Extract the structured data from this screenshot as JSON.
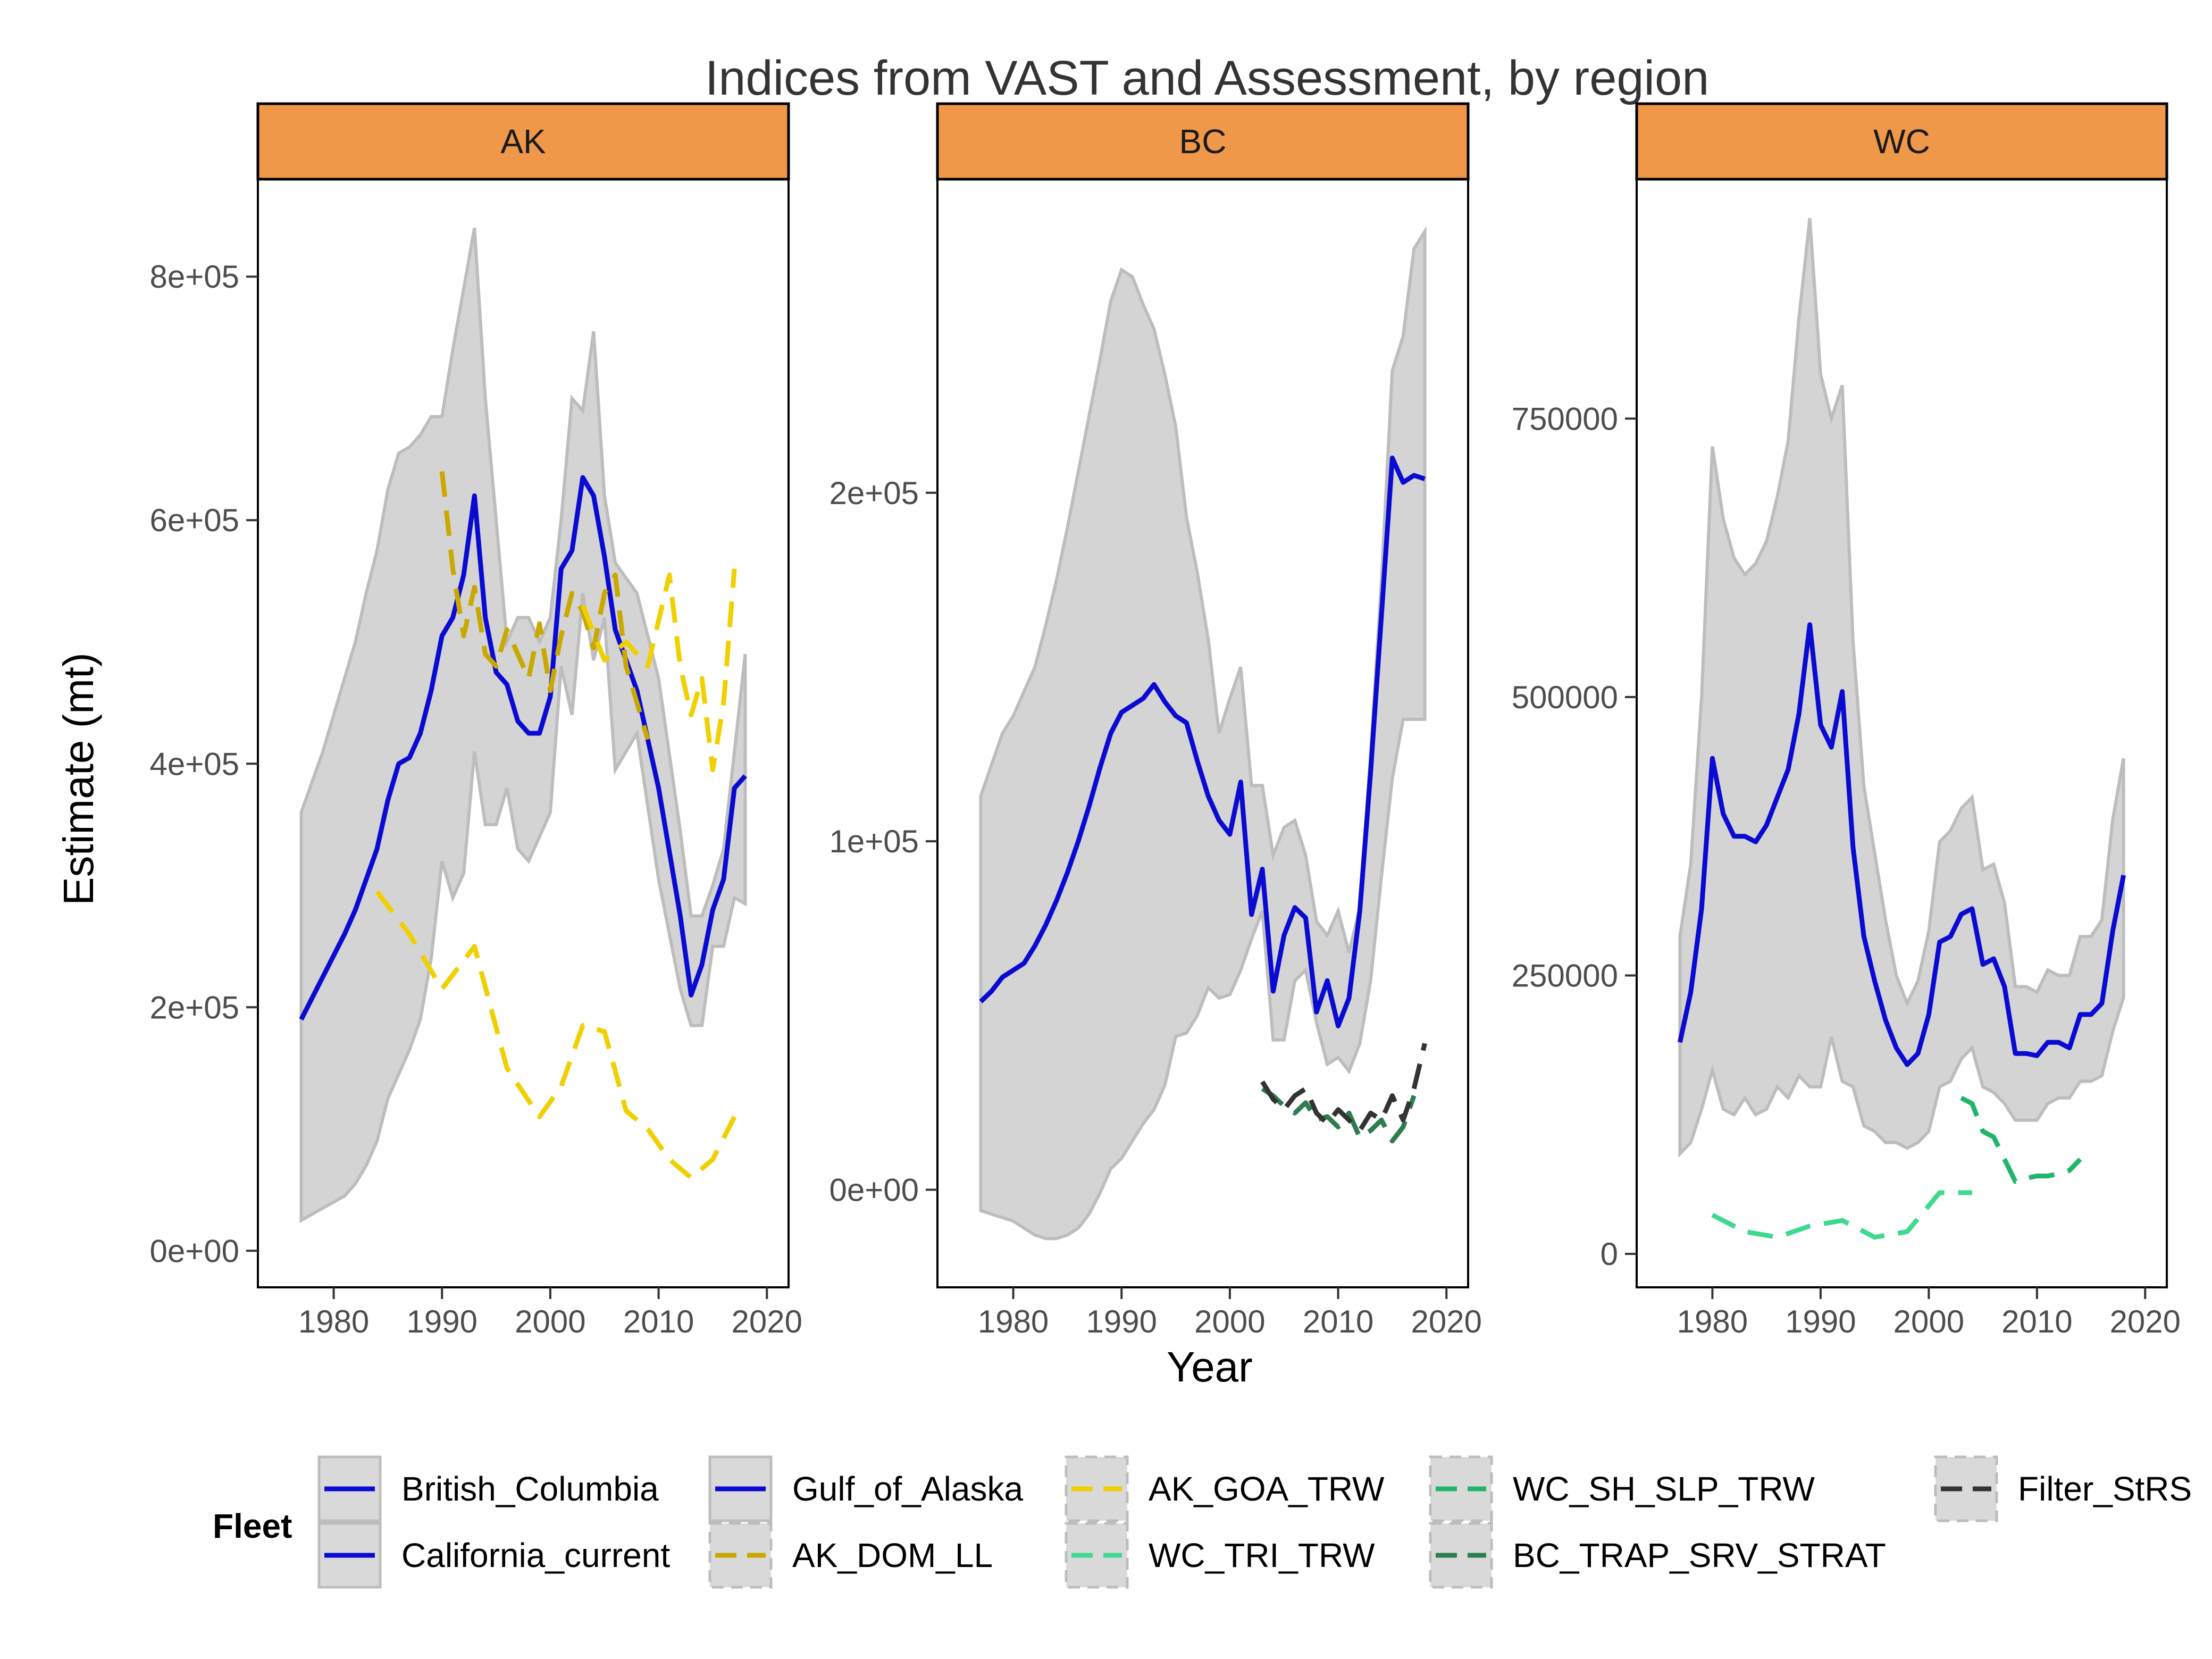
{
  "chart_data": {
    "type": "line",
    "title": "Indices from VAST and Assessment, by region",
    "xlabel": "Year",
    "ylabel": "Estimate (mt)",
    "grid": false,
    "legend_position": "bottom",
    "legend": {
      "title": "Fleet",
      "items": [
        {
          "label": "British_Columbia",
          "color": "#0a0ad2",
          "dash": "solid",
          "ribbon": true
        },
        {
          "label": "California_current",
          "color": "#0a0ad2",
          "dash": "solid",
          "ribbon": true
        },
        {
          "label": "Gulf_of_Alaska",
          "color": "#0a0ad2",
          "dash": "solid",
          "ribbon": true
        },
        {
          "label": "AK_DOM_LL",
          "color": "#c9a800",
          "dash": "dashed",
          "ribbon": false
        },
        {
          "label": "AK_GOA_TRW",
          "color": "#f0d000",
          "dash": "dashed",
          "ribbon": false
        },
        {
          "label": "WC_TRI_TRW",
          "color": "#3fd88f",
          "dash": "dashed",
          "ribbon": false
        },
        {
          "label": "WC_SH_SLP_TRW",
          "color": "#22b56a",
          "dash": "dashed",
          "ribbon": false
        },
        {
          "label": "BC_TRAP_SRV_STRAT",
          "color": "#2e7d4f",
          "dash": "dashed",
          "ribbon": false
        },
        {
          "label": "Filter_StRS",
          "color": "#333333",
          "dash": "dashed",
          "ribbon": false
        }
      ]
    },
    "colors": {
      "strip": "#f0984a",
      "ribbon": "#d4d4d4",
      "ribbon_edge": "#bdbdbd"
    },
    "panels": [
      {
        "label": "AK",
        "xlim": [
          1973,
          2022
        ],
        "xticks": [
          1980,
          1990,
          2000,
          2010,
          2020
        ],
        "ylim": [
          -30000,
          880000
        ],
        "yticks": [
          0,
          200000,
          400000,
          600000,
          800000
        ],
        "ytick_labels": [
          "0e+00",
          "2e+05",
          "4e+05",
          "6e+05",
          "8e+05"
        ],
        "series": [
          {
            "name": "Gulf_of_Alaska",
            "color": "#0a0ad2",
            "dash": "solid",
            "width": 9,
            "x": [
              1977,
              1979,
              1981,
              1982,
              1983,
              1984,
              1985,
              1986,
              1987,
              1988,
              1989,
              1990,
              1991,
              1992,
              1993,
              1994,
              1995,
              1996,
              1997,
              1998,
              1999,
              2000,
              2001,
              2002,
              2003,
              2004,
              2005,
              2006,
              2008,
              2010,
              2012,
              2013,
              2014,
              2015,
              2016,
              2017,
              2018
            ],
            "y": [
              190000,
              225000,
              260000,
              280000,
              305000,
              330000,
              370000,
              400000,
              405000,
              425000,
              460000,
              505000,
              520000,
              555000,
              620000,
              520000,
              475000,
              465000,
              435000,
              425000,
              425000,
              455000,
              560000,
              575000,
              635000,
              620000,
              570000,
              510000,
              460000,
              380000,
              275000,
              210000,
              235000,
              280000,
              305000,
              380000,
              390000
            ],
            "lower": [
              25000,
              35000,
              45000,
              55000,
              70000,
              90000,
              125000,
              145000,
              165000,
              190000,
              240000,
              320000,
              290000,
              310000,
              410000,
              350000,
              350000,
              380000,
              330000,
              320000,
              340000,
              360000,
              480000,
              440000,
              540000,
              485000,
              520000,
              395000,
              425000,
              305000,
              215000,
              185000,
              185000,
              250000,
              250000,
              290000,
              285000
            ],
            "upper": [
              360000,
              410000,
              470000,
              500000,
              540000,
              575000,
              625000,
              655000,
              660000,
              670000,
              685000,
              685000,
              740000,
              790000,
              840000,
              700000,
              600000,
              500000,
              520000,
              520000,
              500000,
              520000,
              600000,
              700000,
              690000,
              755000,
              620000,
              565000,
              540000,
              470000,
              345000,
              275000,
              275000,
              300000,
              330000,
              410000,
              490000
            ]
          },
          {
            "name": "AK_DOM_LL",
            "color": "#c9a800",
            "dash": "dashed",
            "width": 9,
            "x": [
              1990,
              1991,
              1992,
              1993,
              1994,
              1995,
              1996,
              1997,
              1998,
              1999,
              2000,
              2001,
              2002,
              2003,
              2004,
              2005,
              2006,
              2007,
              2008,
              2009
            ],
            "y": [
              640000,
              560000,
              505000,
              545000,
              490000,
              480000,
              510000,
              490000,
              470000,
              515000,
              460000,
              505000,
              540000,
              525000,
              495000,
              540000,
              555000,
              480000,
              450000,
              420000
            ]
          },
          {
            "name": "AK_GOA_TRW",
            "color": "#f0d000",
            "dash": "dashed",
            "width": 9,
            "x": [
              1984,
              1987,
              1990,
              1993,
              1996,
              1999,
              2001,
              2003,
              2005,
              2007,
              2009,
              2011,
              2013,
              2015,
              2017
            ],
            "y": [
              295000,
              260000,
              215000,
              250000,
              150000,
              110000,
              135000,
              185000,
              180000,
              115000,
              100000,
              75000,
              60000,
              75000,
              110000
            ]
          },
          {
            "name": "AK_GOA_TRW",
            "color": "#f0d000",
            "dash": "dashed",
            "width": 9,
            "x": [
              2003,
              2005,
              2007,
              2009,
              2011,
              2012,
              2013,
              2014,
              2015,
              2016,
              2017
            ],
            "y": [
              530000,
              485000,
              500000,
              480000,
              555000,
              480000,
              440000,
              470000,
              395000,
              450000,
              560000
            ]
          }
        ]
      },
      {
        "label": "BC",
        "xlim": [
          1973,
          2022
        ],
        "xticks": [
          1980,
          1990,
          2000,
          2010,
          2020
        ],
        "ylim": [
          -28000,
          290000
        ],
        "yticks": [
          0,
          100000,
          200000
        ],
        "ytick_labels": [
          "0e+00",
          "1e+05",
          "2e+05"
        ],
        "series": [
          {
            "name": "British_Columbia",
            "color": "#0a0ad2",
            "dash": "solid",
            "width": 9,
            "x": [
              1977,
              1978,
              1979,
              1980,
              1981,
              1982,
              1983,
              1984,
              1985,
              1986,
              1987,
              1988,
              1989,
              1990,
              1991,
              1992,
              1993,
              1994,
              1995,
              1996,
              1997,
              1998,
              1999,
              2000,
              2001,
              2002,
              2003,
              2004,
              2005,
              2006,
              2007,
              2008,
              2009,
              2010,
              2011,
              2012,
              2013,
              2014,
              2015,
              2016,
              2017,
              2018
            ],
            "y": [
              54000,
              57000,
              61000,
              63000,
              65000,
              70000,
              76000,
              83000,
              91000,
              100000,
              110000,
              121000,
              131000,
              137000,
              139000,
              141000,
              145000,
              140000,
              136000,
              134000,
              123000,
              113000,
              106000,
              102000,
              117000,
              79000,
              92000,
              57000,
              73000,
              81000,
              78000,
              51000,
              60000,
              47000,
              55000,
              80000,
              120000,
              165000,
              210000,
              203000,
              205000,
              204000
            ],
            "lower": [
              -6000,
              -7000,
              -8000,
              -9000,
              -11000,
              -13000,
              -14000,
              -14000,
              -13000,
              -11000,
              -7000,
              -1000,
              6000,
              9000,
              14000,
              19000,
              23000,
              30000,
              44000,
              45000,
              50000,
              58000,
              55000,
              56000,
              63000,
              72000,
              80000,
              43000,
              43000,
              60000,
              63000,
              48000,
              36000,
              38000,
              34000,
              42000,
              60000,
              90000,
              118000,
              135000,
              135000,
              135000
            ],
            "upper": [
              113000,
              122000,
              131000,
              136000,
              143000,
              150000,
              162000,
              175000,
              190000,
              206000,
              222000,
              238000,
              255000,
              264000,
              262000,
              254000,
              247000,
              234000,
              219000,
              193000,
              177000,
              158000,
              131000,
              141000,
              150000,
              116000,
              116000,
              96000,
              104000,
              106000,
              96000,
              77000,
              73000,
              80000,
              68000,
              81000,
              125000,
              175000,
              235000,
              245000,
              270000,
              275000
            ]
          },
          {
            "name": "BC_TRAP_SRV_STRAT",
            "color": "#2e7d4f",
            "dash": "dashed",
            "width": 9,
            "x": [
              2003,
              2004,
              2005,
              2006,
              2007,
              2008,
              2009,
              2010,
              2011,
              2012,
              2013,
              2014,
              2015,
              2016,
              2017
            ],
            "y": [
              29000,
              27000,
              24000,
              22000,
              25000,
              20000,
              21000,
              18000,
              22000,
              15000,
              17000,
              20000,
              14000,
              18000,
              27000
            ]
          },
          {
            "name": "Filter_StRS",
            "color": "#333333",
            "dash": "dashed",
            "width": 9,
            "x": [
              2003,
              2004,
              2005,
              2006,
              2007,
              2008,
              2009,
              2010,
              2011,
              2012,
              2013,
              2014,
              2015,
              2016,
              2017,
              2018
            ],
            "y": [
              31000,
              26000,
              23000,
              27000,
              29000,
              22000,
              19000,
              23000,
              20000,
              17000,
              22000,
              20000,
              27000,
              20000,
              29000,
              42000
            ]
          }
        ]
      },
      {
        "label": "WC",
        "xlim": [
          1973,
          2022
        ],
        "xticks": [
          1980,
          1990,
          2000,
          2010,
          2020
        ],
        "ylim": [
          -30000,
          965000
        ],
        "yticks": [
          0,
          250000,
          500000,
          750000
        ],
        "ytick_labels": [
          "0",
          "250000",
          "500000",
          "750000"
        ],
        "series": [
          {
            "name": "California_current",
            "color": "#0a0ad2",
            "dash": "solid",
            "width": 9,
            "x": [
              1977,
              1978,
              1979,
              1980,
              1981,
              1982,
              1983,
              1984,
              1985,
              1986,
              1987,
              1988,
              1989,
              1990,
              1991,
              1992,
              1993,
              1994,
              1995,
              1996,
              1997,
              1998,
              1999,
              2000,
              2001,
              2002,
              2003,
              2004,
              2005,
              2006,
              2007,
              2008,
              2009,
              2010,
              2011,
              2012,
              2013,
              2014,
              2015,
              2016,
              2017,
              2018
            ],
            "y": [
              190000,
              235000,
              310000,
              445000,
              395000,
              375000,
              375000,
              370000,
              385000,
              410000,
              435000,
              485000,
              565000,
              475000,
              455000,
              505000,
              365000,
              285000,
              245000,
              210000,
              185000,
              170000,
              180000,
              215000,
              280000,
              285000,
              305000,
              310000,
              260000,
              265000,
              240000,
              180000,
              180000,
              178000,
              190000,
              190000,
              185000,
              215000,
              215000,
              225000,
              290000,
              340000
            ],
            "lower": [
              90000,
              100000,
              130000,
              165000,
              130000,
              125000,
              140000,
              125000,
              130000,
              150000,
              140000,
              160000,
              150000,
              150000,
              195000,
              155000,
              150000,
              115000,
              110000,
              100000,
              100000,
              95000,
              100000,
              110000,
              150000,
              155000,
              175000,
              185000,
              150000,
              145000,
              135000,
              120000,
              120000,
              120000,
              135000,
              140000,
              140000,
              155000,
              155000,
              160000,
              200000,
              230000
            ],
            "upper": [
              285000,
              350000,
              500000,
              725000,
              660000,
              625000,
              610000,
              620000,
              640000,
              680000,
              730000,
              840000,
              930000,
              790000,
              750000,
              780000,
              550000,
              420000,
              360000,
              300000,
              250000,
              225000,
              245000,
              290000,
              370000,
              380000,
              400000,
              410000,
              345000,
              350000,
              315000,
              240000,
              240000,
              235000,
              255000,
              250000,
              250000,
              285000,
              285000,
              300000,
              390000,
              445000
            ]
          },
          {
            "name": "WC_TRI_TRW",
            "color": "#3fd88f",
            "dash": "dashed",
            "width": 9,
            "x": [
              1980,
              1983,
              1986,
              1989,
              1992,
              1995,
              1998,
              2001,
              2004
            ],
            "y": [
              35000,
              20000,
              15000,
              25000,
              30000,
              15000,
              20000,
              55000,
              55000
            ]
          },
          {
            "name": "WC_SH_SLP_TRW",
            "color": "#22b56a",
            "dash": "dashed",
            "width": 9,
            "x": [
              2003,
              2004,
              2005,
              2006,
              2007,
              2008,
              2009,
              2010,
              2011,
              2012,
              2013,
              2014
            ],
            "y": [
              140000,
              135000,
              110000,
              105000,
              85000,
              65000,
              68000,
              70000,
              70000,
              72000,
              75000,
              85000
            ]
          }
        ]
      }
    ]
  }
}
